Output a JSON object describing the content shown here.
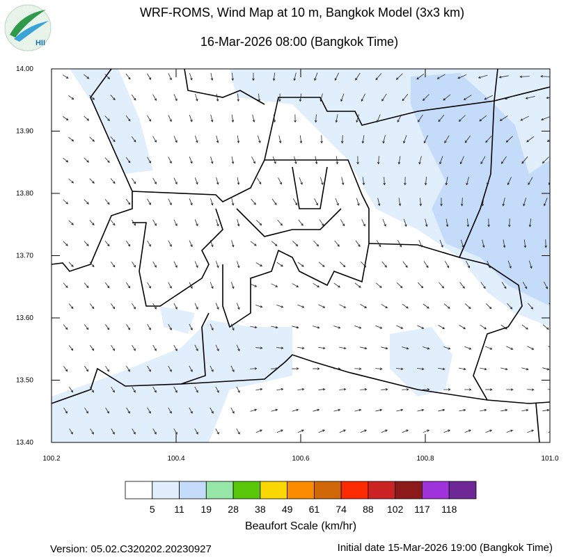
{
  "header": {
    "logo_text": "HII",
    "title": "WRF-ROMS, Wind Map at 10 m, Bangkok Model (3x3 km)",
    "subtitle": "16-Mar-2026 08:00 (Bangkok Time)"
  },
  "map": {
    "xlim": [
      100.2,
      101.0
    ],
    "ylim": [
      13.4,
      14.0
    ],
    "xticks": [
      100.2,
      100.4,
      100.6,
      100.8,
      {
        "value": 101.0,
        "label": "101.0"
      }
    ],
    "yticks": [
      {
        "value": 14.0,
        "label": "14.00"
      },
      {
        "value": 13.9,
        "label": "13.90"
      },
      {
        "value": 13.8,
        "label": "13.80"
      },
      {
        "value": 13.7,
        "label": "13.70"
      },
      {
        "value": 13.6,
        "label": "13.60"
      },
      {
        "value": 13.5,
        "label": "13.50"
      },
      {
        "value": 13.4,
        "label": "13.40"
      }
    ]
  },
  "colorbar": {
    "colors": [
      "#ffffff",
      "#e1eefc",
      "#c4dcfa",
      "#96e6a8",
      "#5ac80a",
      "#f8d800",
      "#fb8c00",
      "#d0680a",
      "#fb2a00",
      "#cc2424",
      "#8c1a1a",
      "#a032dc",
      "#6e2896"
    ],
    "ticks": [
      5,
      11,
      19,
      28,
      38,
      49,
      61,
      74,
      88,
      102,
      117,
      118
    ],
    "title": "Beaufort Scale (km/hr)"
  },
  "footer": {
    "version": "Version: 05.02.C320202.20230927",
    "initial_date": "Initial date 15-Mar-2026 19:00 (Bangkok Time)"
  }
}
